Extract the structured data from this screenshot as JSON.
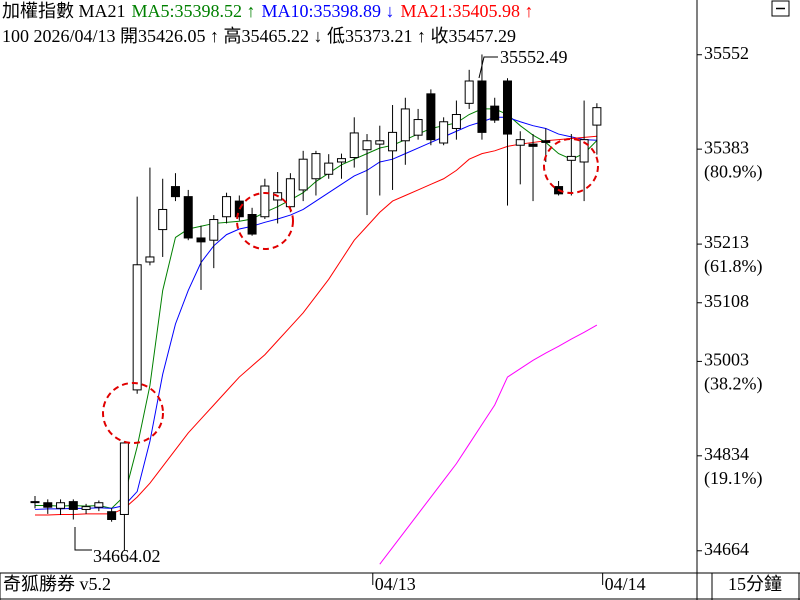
{
  "chart_data": {
    "type": "candlestick",
    "legend_title": "加權指數 MA21",
    "info": "100 2026/04/13 開35426.05 ↑ 高35465.22 ↓ 低35373.21 ↑ 收35457.29",
    "categories": [
      null,
      null,
      null,
      null,
      null,
      null,
      null,
      null,
      null,
      null,
      null,
      null,
      null,
      null,
      null,
      null,
      null,
      null,
      null,
      null,
      null,
      null,
      null,
      null,
      null,
      null,
      null,
      "04/13",
      null,
      null,
      null,
      null,
      null,
      null,
      null,
      null,
      null,
      null,
      null,
      null,
      null,
      null,
      null,
      null,
      null,
      "04/14"
    ],
    "open": [
      34752,
      34750,
      34740,
      34752,
      34738,
      34742,
      34734,
      34729,
      34952,
      35181,
      35239,
      35316,
      35298,
      35224,
      35220,
      35262,
      35290,
      35266,
      35262,
      35292,
      35280,
      35310,
      35330,
      35338,
      35360,
      35368,
      35382,
      35392,
      35380,
      35398,
      35408,
      35482,
      35394,
      35420,
      35465,
      35505,
      35460,
      35505,
      35390,
      35392,
      35398,
      35316,
      35363,
      35360,
      35426.05,
      null
    ],
    "high": [
      34762,
      34756,
      34756,
      34756,
      34748,
      34754,
      34740,
      34860,
      35298,
      35350,
      35330,
      35340,
      35310,
      35246,
      35265,
      35305,
      35300,
      35278,
      35330,
      35342,
      35340,
      35380,
      35380,
      35374,
      35375,
      35440,
      35410,
      35425,
      35462,
      35475,
      35455,
      35490,
      35440,
      35470,
      35525,
      35552.49,
      35475,
      35510,
      35415,
      35410,
      35420,
      35326,
      35410,
      35470,
      35465.22,
      null
    ],
    "low": [
      34740,
      34730,
      34728,
      34720,
      34730,
      34735,
      34716,
      34664.02,
      34945,
      35175,
      35190,
      35290,
      35220,
      35131,
      35170,
      35250,
      35255,
      35228,
      35258,
      35250,
      35270,
      35290,
      35300,
      35330,
      35330,
      35350,
      35265,
      35300,
      35310,
      35355,
      35400,
      35390,
      35390,
      35400,
      35455,
      35400,
      35430,
      35282,
      35320,
      35290,
      35360,
      35300,
      35300,
      35290,
      35373.21,
      null
    ],
    "close": [
      34752,
      34742,
      34750,
      34738,
      34743,
      34750,
      34720,
      34857,
      35176,
      35190,
      35275,
      35298,
      35224,
      35217,
      35257,
      35298,
      35262,
      35231,
      35317,
      35305,
      35330,
      35365,
      35375,
      35358,
      35366,
      35412,
      35398,
      35398,
      35413,
      35455,
      35436,
      35400,
      35432,
      35445,
      35505,
      35413,
      35435,
      35410,
      35400,
      35388,
      35395,
      35303,
      35370,
      35400,
      35457.29,
      null
    ],
    "series": [
      {
        "name": "MA5:35398.52 ↑",
        "color": "#008000",
        "values": [
          34745,
          34745,
          34744,
          34745,
          34744,
          34745,
          34740,
          34762,
          34850,
          34960,
          35130,
          35225,
          35240,
          35245,
          35250,
          35252,
          35254,
          35258,
          35270,
          35280,
          35292,
          35305,
          35325,
          35340,
          35355,
          35365,
          35375,
          35385,
          35390,
          35400,
          35410,
          35420,
          35425,
          35430,
          35445,
          35455,
          35455,
          35445,
          35425,
          35408,
          35395,
          35375,
          35365,
          35375,
          35398.52,
          null
        ]
      },
      {
        "name": "MA10:35398.89 ↓",
        "color": "#0000ff",
        "values": [
          34738,
          34739,
          34739,
          34740,
          34740,
          34741,
          34740,
          34745,
          34770,
          34860,
          34980,
          35070,
          35130,
          35180,
          35210,
          35230,
          35240,
          35245,
          35252,
          35258,
          35265,
          35275,
          35290,
          35305,
          35320,
          35335,
          35345,
          35360,
          35365,
          35375,
          35385,
          35395,
          35405,
          35415,
          35425,
          35432,
          35440,
          35440,
          35432,
          35425,
          35420,
          35410,
          35405,
          35400,
          35398.89,
          null
        ]
      },
      {
        "name": "MA21:35405.98 ↑",
        "color": "#ff0000",
        "values": [
          34728,
          34728,
          34729,
          34729,
          34730,
          34730,
          34730,
          34740,
          34760,
          34785,
          34815,
          34845,
          34875,
          34900,
          34925,
          34950,
          34975,
          34995,
          35015,
          35040,
          35065,
          35090,
          35120,
          35150,
          35185,
          35220,
          35245,
          35270,
          35290,
          35300,
          35310,
          35320,
          35330,
          35345,
          35365,
          35375,
          35380,
          35388,
          35392,
          35395,
          35398,
          35400,
          35402,
          35404,
          35405.98,
          null
        ]
      },
      {
        "color": "#ff00ff",
        "values": [
          null,
          null,
          null,
          null,
          null,
          null,
          null,
          null,
          null,
          null,
          null,
          null,
          null,
          null,
          null,
          null,
          null,
          null,
          null,
          null,
          null,
          null,
          null,
          null,
          null,
          null,
          null,
          34640,
          34670,
          34700,
          34730,
          34760,
          34790,
          34820,
          34855,
          34890,
          34925,
          34975,
          34990,
          35005,
          35018,
          35030,
          35043,
          35055,
          35068,
          null
        ]
      }
    ],
    "ylim": [
      34626,
      35650
    ],
    "yticks": [
      35552,
      35383,
      35213,
      35108,
      35003,
      34834,
      34664
    ],
    "ytick_notes": [
      null,
      "(80.9%)",
      "(61.8%)",
      null,
      "(38.2%)",
      "(19.1%)",
      null
    ],
    "annotations": [
      {
        "text": "35552.49"
      },
      {
        "text": "34664.02"
      }
    ],
    "footer": {
      "left": "奇狐勝券 v5.2",
      "right": "15分鐘"
    }
  }
}
